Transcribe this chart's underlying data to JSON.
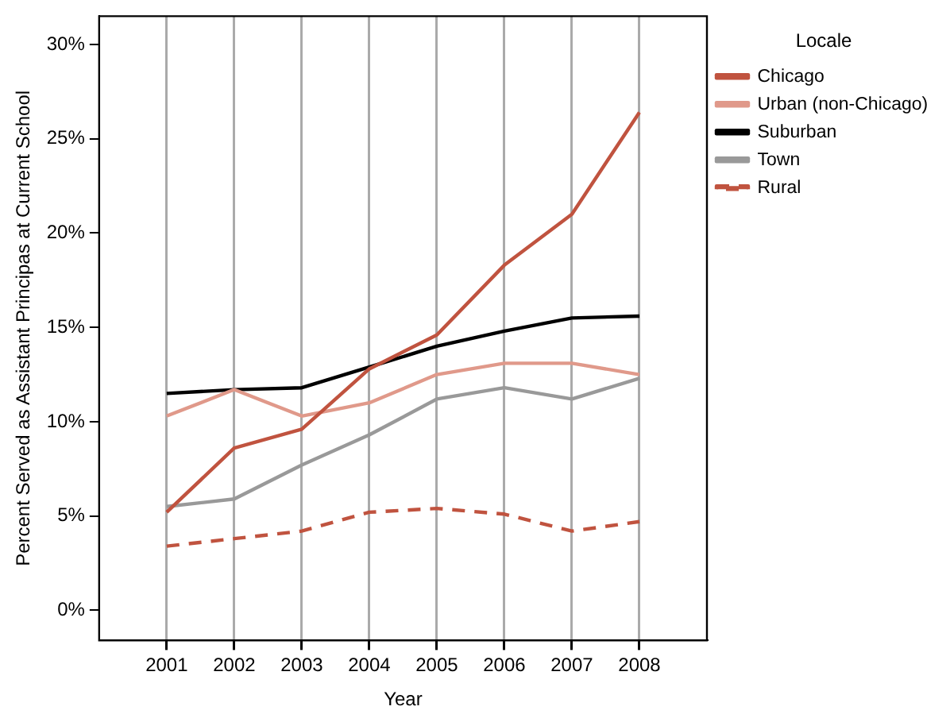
{
  "chart_data": {
    "type": "line",
    "xlabel": "Year",
    "ylabel": "Percent Served as Assistant Principas at Current School",
    "legend_title": "Locale",
    "legend": "right",
    "grid": "x",
    "x": [
      2001,
      2002,
      2003,
      2004,
      2005,
      2006,
      2007,
      2008
    ],
    "xlim": [
      2000,
      2009
    ],
    "xticks": [
      2001,
      2002,
      2003,
      2004,
      2005,
      2006,
      2007,
      2008
    ],
    "ylim": [
      -1.6,
      31.5
    ],
    "yticks": [
      {
        "value": 0,
        "label": "0%"
      },
      {
        "value": 5,
        "label": "5%"
      },
      {
        "value": 10,
        "label": "10%"
      },
      {
        "value": 15,
        "label": "15%"
      },
      {
        "value": 20,
        "label": "20%"
      },
      {
        "value": 25,
        "label": "25%"
      },
      {
        "value": 30,
        "label": "30%"
      }
    ],
    "series": [
      {
        "name": "Chicago",
        "color": "#c0533f",
        "line_style": "solid",
        "values": [
          5.2,
          8.6,
          9.6,
          12.8,
          14.6,
          18.3,
          21.0,
          26.4
        ]
      },
      {
        "name": "Urban (non-Chicago)",
        "color": "#e0998a",
        "line_style": "solid",
        "values": [
          10.3,
          11.7,
          10.3,
          11.0,
          12.5,
          13.1,
          13.1,
          12.5
        ]
      },
      {
        "name": "Suburban",
        "color": "#000000",
        "line_style": "solid",
        "values": [
          11.5,
          11.7,
          11.8,
          12.9,
          14.0,
          14.8,
          15.5,
          15.6
        ]
      },
      {
        "name": "Town",
        "color": "#999999",
        "line_style": "solid",
        "values": [
          5.5,
          5.9,
          7.7,
          9.3,
          11.2,
          11.8,
          11.2,
          12.3
        ]
      },
      {
        "name": "Rural",
        "color": "#c0533f",
        "line_style": "dashed",
        "values": [
          3.4,
          3.8,
          4.2,
          5.2,
          5.4,
          5.1,
          4.2,
          4.7
        ]
      }
    ]
  }
}
